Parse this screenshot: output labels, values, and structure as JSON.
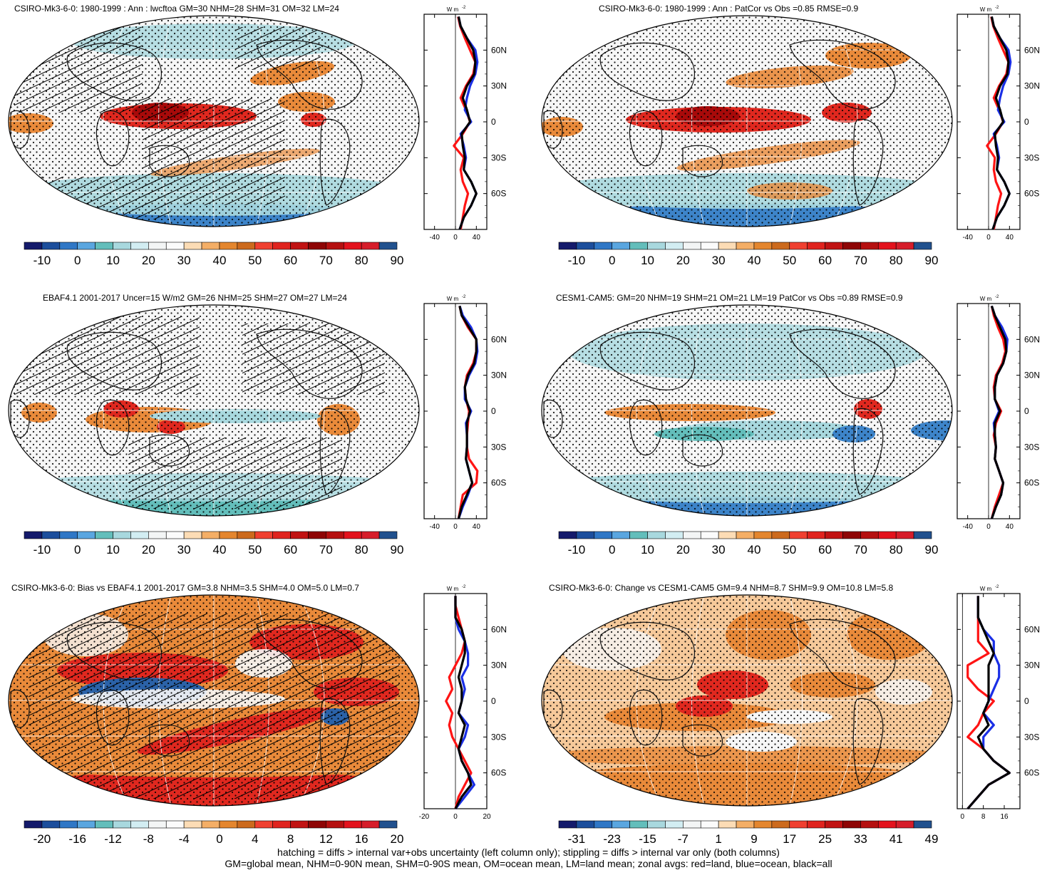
{
  "colors": {
    "ramp_main": [
      "#1b1f6e",
      "#1f4f9b",
      "#2f78c4",
      "#5ea6df",
      "#62bdbb",
      "#a5d7dd",
      "#cdebf0",
      "#f4f4f4",
      "#f4f4f4",
      "#fbd9b0",
      "#f2a85e",
      "#e07b24",
      "#c65f17",
      "#ef3b2c",
      "#cf1a1a",
      "#a60b0b",
      "#7a0000",
      "#b00000",
      "#e0001c",
      "#d22020",
      "#1f4f9b"
    ],
    "land_line": "#111111",
    "ocean_line": "#1030e0",
    "all_line": "#000000",
    "land_zonal": "#ff1111"
  },
  "caption": {
    "line1": "hatching = diffs > internal var+obs uncertainty (left column only); stippling = diffs > internal var only (both columns)",
    "line2": "GM=global mean, NHM=0-90N mean, SHM=0-90S mean, OM=ocean mean, LM=land mean; zonal avgs: red=land, blue=ocean, black=all"
  },
  "panels": [
    {
      "title": "CSIRO-Mk3-6-0: 1980-1999 : Ann : lwcftoa GM=30 NHM=28 SHM=31 OM=32 LM=24",
      "unit_label": "W m",
      "unit_sup": "-2",
      "colorbar_labels": [
        "-10",
        "0",
        "10",
        "20",
        "30",
        "40",
        "50",
        "60",
        "70",
        "80",
        "90"
      ],
      "zonal_xticks": [
        "-40",
        "0",
        "40"
      ],
      "lat_labels": [
        "60N",
        "30N",
        "0",
        "30S",
        "60S"
      ],
      "chart_data": {
        "type": "line",
        "xlabel": "W m-2",
        "ylabel": "",
        "xlim": [
          -60,
          60
        ],
        "ylim": [
          -90,
          90
        ],
        "series": [
          {
            "name": "land",
            "x": [
              10,
              14,
              18,
              24,
              14,
              10,
              16,
              -3,
              14,
              28,
              20,
              10,
              20,
              34,
              38,
              28,
              18,
              9,
              5
            ],
            "y": [
              -90,
              -80,
              -70,
              -60,
              -50,
              -40,
              -30,
              -20,
              -10,
              0,
              10,
              20,
              30,
              40,
              50,
              60,
              70,
              80,
              88
            ]
          },
          {
            "name": "ocean",
            "x": [
              8,
              16,
              30,
              40,
              30,
              16,
              20,
              16,
              10,
              30,
              18,
              22,
              28,
              38,
              42,
              38,
              22,
              10,
              6
            ],
            "y": [
              -90,
              -80,
              -70,
              -60,
              -50,
              -40,
              -30,
              -20,
              -10,
              0,
              10,
              20,
              30,
              40,
              50,
              60,
              70,
              80,
              88
            ]
          },
          {
            "name": "all",
            "x": [
              8,
              16,
              30,
              40,
              30,
              16,
              18,
              14,
              12,
              28,
              22,
              14,
              22,
              36,
              38,
              34,
              22,
              10,
              6
            ],
            "y": [
              -90,
              -80,
              -70,
              -60,
              -50,
              -40,
              -30,
              -20,
              -10,
              0,
              10,
              20,
              30,
              40,
              50,
              60,
              70,
              80,
              88
            ]
          }
        ]
      }
    },
    {
      "title": "CSIRO-Mk3-6-0: 1980-1999 : Ann : PatCor vs Obs =0.85 RMSE=0.9",
      "unit_label": "W m",
      "unit_sup": "-2",
      "colorbar_labels": [
        "-10",
        "0",
        "10",
        "20",
        "30",
        "40",
        "50",
        "60",
        "70",
        "80",
        "90"
      ],
      "zonal_xticks": [
        "-40",
        "0",
        "40"
      ],
      "lat_labels": [
        "60N",
        "30N",
        "0",
        "30S",
        "60S"
      ],
      "chart_data": {
        "type": "line",
        "xlabel": "W m-2",
        "ylabel": "",
        "xlim": [
          -60,
          60
        ],
        "ylim": [
          -90,
          90
        ],
        "series": [
          {
            "name": "land",
            "x": [
              10,
              14,
              18,
              24,
              14,
              10,
              12,
              -3,
              14,
              28,
              20,
              10,
              20,
              34,
              38,
              28,
              18,
              9,
              5
            ],
            "y": [
              -90,
              -80,
              -70,
              -60,
              -50,
              -40,
              -30,
              -20,
              -10,
              0,
              10,
              20,
              30,
              40,
              50,
              60,
              70,
              80,
              88
            ]
          },
          {
            "name": "ocean",
            "x": [
              8,
              16,
              30,
              40,
              30,
              16,
              20,
              16,
              10,
              30,
              18,
              22,
              28,
              38,
              42,
              38,
              22,
              10,
              6
            ],
            "y": [
              -90,
              -80,
              -70,
              -60,
              -50,
              -40,
              -30,
              -20,
              -10,
              0,
              10,
              20,
              30,
              40,
              50,
              60,
              70,
              80,
              88
            ]
          },
          {
            "name": "all",
            "x": [
              8,
              16,
              30,
              40,
              30,
              16,
              18,
              14,
              12,
              28,
              22,
              14,
              22,
              36,
              38,
              34,
              22,
              10,
              6
            ],
            "y": [
              -90,
              -80,
              -70,
              -60,
              -50,
              -40,
              -30,
              -20,
              -10,
              0,
              10,
              20,
              30,
              40,
              50,
              60,
              70,
              80,
              88
            ]
          }
        ]
      }
    },
    {
      "title": "EBAF4.1 2001-2017 Uncer=15 W/m2 GM=26 NHM=25 SHM=27 OM=27 LM=24",
      "unit_label": "W m",
      "unit_sup": "-2",
      "colorbar_labels": [
        "-10",
        "0",
        "10",
        "20",
        "30",
        "40",
        "50",
        "60",
        "70",
        "80",
        "90"
      ],
      "zonal_xticks": [
        "-40",
        "0",
        "40"
      ],
      "lat_labels": [
        "60N",
        "30N",
        "0",
        "30S",
        "60S"
      ],
      "chart_data": {
        "type": "line",
        "xlabel": "W m-2",
        "ylabel": "",
        "xlim": [
          -60,
          60
        ],
        "ylim": [
          -90,
          90
        ],
        "series": [
          {
            "name": "land",
            "x": [
              6,
              10,
              14,
              40,
              42,
              26,
              22,
              22,
              24,
              26,
              20,
              18,
              22,
              34,
              40,
              40,
              24,
              12,
              8
            ],
            "y": [
              -90,
              -80,
              -70,
              -60,
              -50,
              -40,
              -30,
              -20,
              -10,
              0,
              10,
              20,
              30,
              40,
              50,
              60,
              70,
              80,
              88
            ]
          },
          {
            "name": "ocean",
            "x": [
              6,
              14,
              24,
              32,
              26,
              20,
              22,
              22,
              20,
              30,
              18,
              18,
              26,
              38,
              42,
              40,
              30,
              14,
              8
            ],
            "y": [
              -90,
              -80,
              -70,
              -60,
              -50,
              -40,
              -30,
              -20,
              -10,
              0,
              10,
              20,
              30,
              40,
              50,
              60,
              70,
              80,
              88
            ]
          },
          {
            "name": "all",
            "x": [
              6,
              12,
              22,
              32,
              26,
              20,
              22,
              22,
              22,
              28,
              20,
              18,
              24,
              36,
              40,
              40,
              26,
              12,
              8
            ],
            "y": [
              -90,
              -80,
              -70,
              -60,
              -50,
              -40,
              -30,
              -20,
              -10,
              0,
              10,
              20,
              30,
              40,
              50,
              60,
              70,
              80,
              88
            ]
          }
        ]
      }
    },
    {
      "title": "CESM1-CAM5: GM=20 NHM=19 SHM=21 OM=21 LM=19 PatCor vs Obs =0.89 RMSE=0.9",
      "unit_label": "W m",
      "unit_sup": "-2",
      "colorbar_labels": [
        "-10",
        "0",
        "10",
        "20",
        "30",
        "40",
        "50",
        "60",
        "70",
        "80",
        "90"
      ],
      "zonal_xticks": [
        "-40",
        "0",
        "40"
      ],
      "lat_labels": [
        "60N",
        "30N",
        "0",
        "30S",
        "60S"
      ],
      "chart_data": {
        "type": "line",
        "xlabel": "W m-2",
        "ylabel": "",
        "xlim": [
          -60,
          60
        ],
        "ylim": [
          -90,
          90
        ],
        "series": [
          {
            "name": "land",
            "x": [
              6,
              12,
              20,
              28,
              20,
              12,
              14,
              10,
              14,
              24,
              12,
              10,
              14,
              26,
              32,
              28,
              18,
              10,
              6
            ],
            "y": [
              -90,
              -80,
              -70,
              -60,
              -50,
              -40,
              -30,
              -20,
              -10,
              0,
              10,
              20,
              30,
              40,
              50,
              60,
              70,
              80,
              88
            ]
          },
          {
            "name": "ocean",
            "x": [
              6,
              14,
              24,
              28,
              20,
              12,
              14,
              12,
              10,
              20,
              12,
              12,
              16,
              28,
              34,
              36,
              26,
              12,
              6
            ],
            "y": [
              -90,
              -80,
              -70,
              -60,
              -50,
              -40,
              -30,
              -20,
              -10,
              0,
              10,
              20,
              30,
              40,
              50,
              60,
              70,
              80,
              88
            ]
          },
          {
            "name": "all",
            "x": [
              6,
              14,
              24,
              28,
              20,
              12,
              14,
              12,
              12,
              22,
              12,
              12,
              16,
              28,
              34,
              32,
              22,
              12,
              6
            ],
            "y": [
              -90,
              -80,
              -70,
              -60,
              -50,
              -40,
              -30,
              -20,
              -10,
              0,
              10,
              20,
              30,
              40,
              50,
              60,
              70,
              80,
              88
            ]
          }
        ]
      }
    },
    {
      "title": "CSIRO-Mk3-6-0: Bias vs EBAF4.1 2001-2017 GM=3.8 NHM=3.5 SHM=4.0 OM=5.0 LM=0.7",
      "unit_label": "W m",
      "unit_sup": "-2",
      "colorbar_labels": [
        "-20",
        "-16",
        "-12",
        "-8",
        "-4",
        "0",
        "4",
        "8",
        "12",
        "16",
        "20"
      ],
      "zonal_xticks": [
        "-20",
        "0",
        "20"
      ],
      "lat_labels": [
        "60N",
        "30N",
        "0",
        "30S",
        "60S"
      ],
      "chart_data": {
        "type": "line",
        "xlabel": "W m-2",
        "ylabel": "",
        "xlim": [
          -20,
          20
        ],
        "ylim": [
          -90,
          90
        ],
        "series": [
          {
            "name": "land",
            "x": [
              0,
              2,
              6,
              10,
              6,
              2,
              -2,
              -4,
              -2,
              -6,
              -2,
              -4,
              0,
              4,
              6,
              4,
              2,
              0,
              0
            ],
            "y": [
              -90,
              -80,
              -70,
              -60,
              -50,
              -40,
              -30,
              -20,
              -10,
              0,
              10,
              20,
              30,
              40,
              50,
              60,
              70,
              80,
              88
            ]
          },
          {
            "name": "ocean",
            "x": [
              0,
              6,
              12,
              8,
              4,
              2,
              6,
              8,
              2,
              4,
              6,
              4,
              8,
              8,
              6,
              2,
              0,
              0,
              0
            ],
            "y": [
              -90,
              -80,
              -70,
              -60,
              -50,
              -40,
              -30,
              -20,
              -10,
              0,
              10,
              20,
              30,
              40,
              50,
              60,
              70,
              80,
              88
            ]
          },
          {
            "name": "all",
            "x": [
              0,
              4,
              10,
              8,
              4,
              2,
              4,
              6,
              2,
              4,
              4,
              2,
              4,
              6,
              6,
              4,
              0,
              0,
              0
            ],
            "y": [
              -90,
              -80,
              -70,
              -60,
              -50,
              -40,
              -30,
              -20,
              -10,
              0,
              10,
              20,
              30,
              40,
              50,
              60,
              70,
              80,
              88
            ]
          }
        ]
      }
    },
    {
      "title": "CSIRO-Mk3-6-0: Change vs CESM1-CAM5 GM=9.4 NHM=8.7 SHM=9.9 OM=10.8 LM=5.8",
      "unit_label": "W m",
      "unit_sup": "-2",
      "colorbar_labels": [
        "-31",
        "-23",
        "-15",
        "-7",
        "1",
        "9",
        "17",
        "25",
        "33",
        "41",
        "49"
      ],
      "zonal_xticks": [
        "0",
        "8",
        "16"
      ],
      "lat_labels": [
        "60N",
        "30N",
        "0",
        "30S",
        "60S"
      ],
      "chart_data": {
        "type": "line",
        "xlabel": "W m-2",
        "ylabel": "",
        "xlim": [
          -2,
          22
        ],
        "ylim": [
          -90,
          90
        ],
        "series": [
          {
            "name": "land",
            "x": [
              2,
              6,
              10,
              18,
              12,
              8,
              2,
              6,
              8,
              12,
              6,
              2,
              2,
              10,
              6,
              6,
              6,
              6,
              6
            ],
            "y": [
              -90,
              -80,
              -70,
              -60,
              -50,
              -40,
              -30,
              -20,
              -10,
              0,
              10,
              20,
              30,
              40,
              50,
              60,
              70,
              80,
              88
            ]
          },
          {
            "name": "ocean",
            "x": [
              2,
              6,
              10,
              18,
              12,
              8,
              8,
              12,
              8,
              10,
              12,
              14,
              14,
              12,
              12,
              8,
              6,
              6,
              6
            ],
            "y": [
              -90,
              -80,
              -70,
              -60,
              -50,
              -40,
              -30,
              -20,
              -10,
              0,
              10,
              20,
              30,
              40,
              50,
              60,
              70,
              80,
              88
            ]
          },
          {
            "name": "all",
            "x": [
              2,
              6,
              10,
              18,
              12,
              8,
              6,
              10,
              8,
              10,
              10,
              10,
              10,
              12,
              10,
              8,
              6,
              6,
              6
            ],
            "y": [
              -90,
              -80,
              -70,
              -60,
              -50,
              -40,
              -30,
              -20,
              -10,
              0,
              10,
              20,
              30,
              40,
              50,
              60,
              70,
              80,
              88
            ]
          }
        ]
      }
    }
  ]
}
